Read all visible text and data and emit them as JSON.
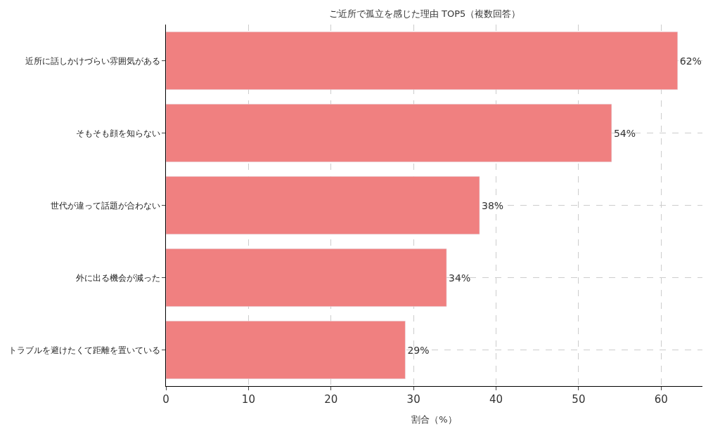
{
  "chart_data": {
    "type": "bar",
    "orientation": "horizontal",
    "title": "ご近所で孤立を感じた理由 TOP5（複数回答）",
    "xlabel": "割合（%）",
    "categories": [
      "近所に話しかけづらい雰囲気がある",
      "そもそも顔を知らない",
      "世代が違って話題が合わない",
      "外に出る機会が減った",
      "トラブルを避けたくて距離を置いている"
    ],
    "values": [
      62,
      54,
      38,
      34,
      29
    ],
    "value_labels": [
      "62%",
      "54%",
      "38%",
      "34%",
      "29%"
    ],
    "color": "#f08080",
    "xlim": [
      0,
      65
    ],
    "xticks": [
      0,
      10,
      20,
      30,
      40,
      50,
      60
    ],
    "grid": true
  }
}
